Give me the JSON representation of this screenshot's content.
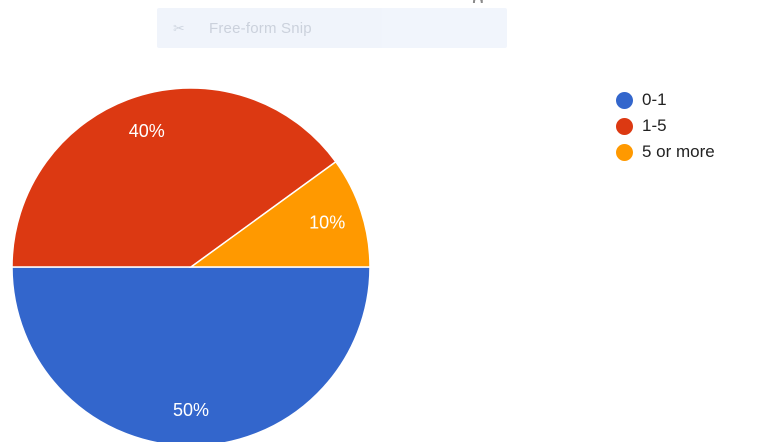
{
  "snip_toolbar": {
    "label": "Free-form Snip",
    "icon": "scissors-icon"
  },
  "chart_data": {
    "type": "pie",
    "categories": [
      "0-1",
      "1-5",
      "5 or more"
    ],
    "values": [
      50,
      40,
      10
    ],
    "slice_labels": [
      "50%",
      "40%",
      "10%"
    ],
    "colors": [
      "#3366cc",
      "#dc3912",
      "#ff9900"
    ],
    "legend_placement": "right"
  }
}
